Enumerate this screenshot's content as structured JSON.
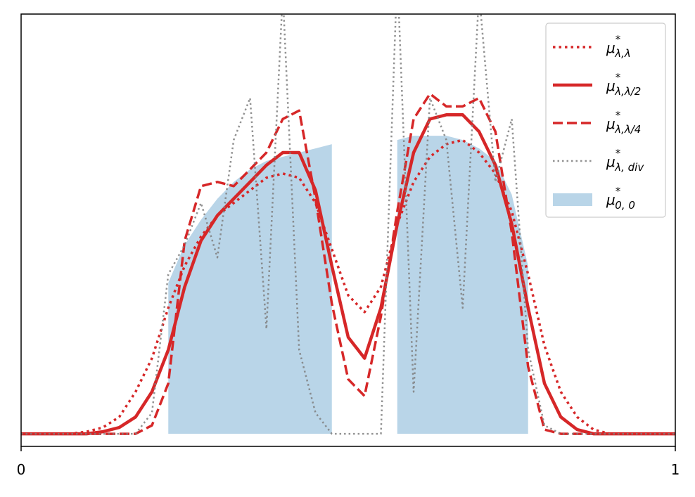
{
  "chart_data": {
    "type": "line",
    "x": [
      0,
      0.025,
      0.05,
      0.075,
      0.1,
      0.125,
      0.15,
      0.175,
      0.2,
      0.225,
      0.25,
      0.275,
      0.3,
      0.325,
      0.35,
      0.375,
      0.4,
      0.425,
      0.45,
      0.475,
      0.5,
      0.525,
      0.55,
      0.575,
      0.6,
      0.625,
      0.65,
      0.675,
      0.7,
      0.725,
      0.75,
      0.775,
      0.8,
      0.825,
      0.85,
      0.875,
      0.9,
      0.925,
      0.95,
      0.975,
      1
    ],
    "series": [
      {
        "name": "μ",
        "sup": "*",
        "sub": "λ,λ",
        "color": "#d62728",
        "style": "dotted",
        "values": [
          0,
          0,
          0,
          0,
          0.005,
          0.015,
          0.04,
          0.1,
          0.18,
          0.3,
          0.4,
          0.47,
          0.52,
          0.55,
          0.58,
          0.61,
          0.62,
          0.61,
          0.55,
          0.44,
          0.33,
          0.29,
          0.35,
          0.5,
          0.6,
          0.66,
          0.69,
          0.7,
          0.67,
          0.62,
          0.53,
          0.38,
          0.21,
          0.1,
          0.04,
          0.01,
          0,
          0,
          0,
          0,
          0
        ]
      },
      {
        "name": "μ",
        "sup": "*",
        "sub": "λ,λ/2",
        "color": "#d62728",
        "style": "solid",
        "values": [
          0,
          0,
          0,
          0,
          0,
          0.005,
          0.015,
          0.04,
          0.1,
          0.2,
          0.35,
          0.46,
          0.52,
          0.56,
          0.6,
          0.64,
          0.67,
          0.67,
          0.58,
          0.4,
          0.23,
          0.18,
          0.3,
          0.5,
          0.67,
          0.75,
          0.76,
          0.76,
          0.72,
          0.64,
          0.5,
          0.3,
          0.12,
          0.04,
          0.01,
          0,
          0,
          0,
          0,
          0,
          0
        ]
      },
      {
        "name": "μ",
        "sup": "*",
        "sub": "λ,λ/4",
        "color": "#d62728",
        "style": "dashed",
        "values": [
          0,
          0,
          0,
          0,
          0,
          0,
          0,
          0,
          0.02,
          0.12,
          0.46,
          0.59,
          0.6,
          0.59,
          0.63,
          0.67,
          0.75,
          0.77,
          0.56,
          0.31,
          0.13,
          0.09,
          0.28,
          0.53,
          0.75,
          0.81,
          0.78,
          0.78,
          0.8,
          0.72,
          0.48,
          0.16,
          0.01,
          0,
          0,
          0,
          0,
          0,
          0,
          0,
          0
        ]
      },
      {
        "name": "μ",
        "sup": "*",
        "sub": "λ, div",
        "color": "#7f7f7f",
        "style": "dotted-thin",
        "values": [
          0,
          0,
          0,
          0,
          0,
          0,
          0,
          0,
          0.05,
          0.38,
          0.45,
          0.55,
          0.42,
          0.7,
          0.8,
          0.25,
          1.05,
          0.2,
          0.05,
          0,
          0,
          0,
          0,
          1.1,
          0.1,
          0.8,
          0.7,
          0.3,
          1.05,
          0.6,
          0.75,
          0.2,
          0.02,
          0,
          0,
          0,
          0,
          0,
          0,
          0,
          0
        ]
      },
      {
        "name": "μ",
        "sup": "*",
        "sub": "0, 0",
        "color": "#b9d5e8",
        "style": "area",
        "values": [
          null,
          null,
          null,
          null,
          null,
          null,
          null,
          null,
          null,
          0.36,
          0.45,
          0.51,
          0.56,
          0.6,
          0.63,
          0.65,
          0.66,
          0.67,
          0.68,
          0.69,
          null,
          null,
          null,
          0.7,
          0.71,
          0.71,
          0.71,
          0.7,
          0.68,
          0.65,
          0.57,
          0.4,
          null,
          null,
          null,
          null,
          null,
          null,
          null,
          null,
          null
        ]
      }
    ],
    "xlim": [
      0,
      1
    ],
    "xticks": [
      0,
      1
    ],
    "ylim": [
      -0.03,
      1
    ],
    "yticks": [],
    "legend": "upper right"
  }
}
